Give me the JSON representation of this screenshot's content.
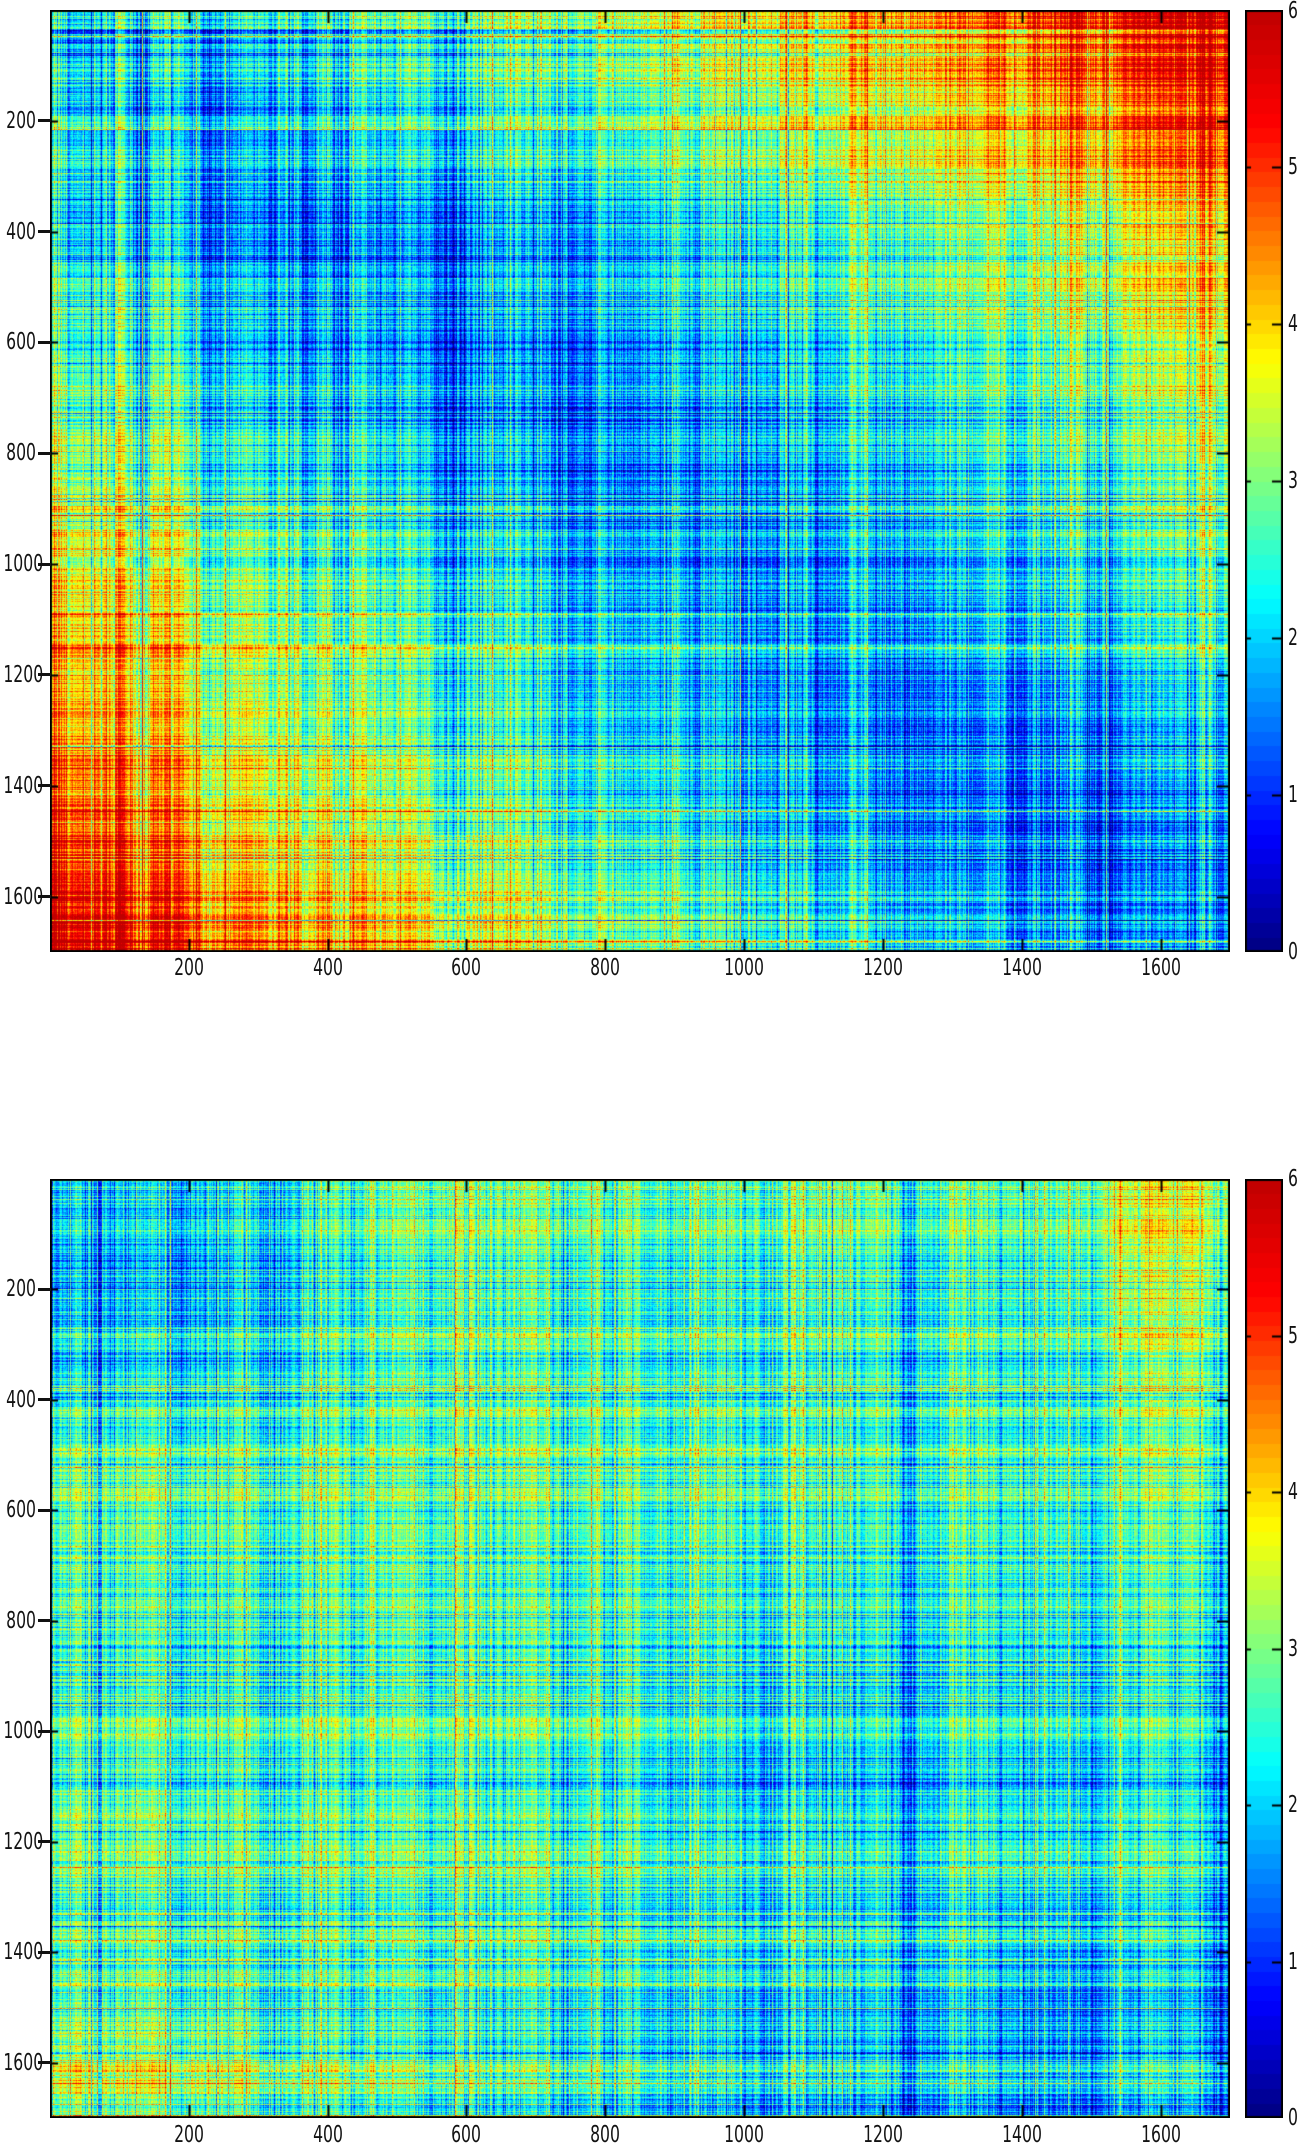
{
  "page": {
    "background": "#ffffff"
  },
  "chart_data": [
    {
      "type": "heatmap",
      "title": "",
      "xlabel": "",
      "ylabel": "",
      "x_range": [
        0,
        1700
      ],
      "y_range": [
        0,
        1700
      ],
      "y_axis_inverted": true,
      "x_ticks": [
        200,
        400,
        600,
        800,
        1000,
        1200,
        1400,
        1600
      ],
      "y_ticks": [
        200,
        400,
        600,
        800,
        1000,
        1200,
        1400,
        1600
      ],
      "colormap": "jet",
      "value_range": [
        0,
        6
      ],
      "colorbar_ticks": [
        6,
        5,
        4,
        3,
        2,
        1,
        0
      ],
      "cell_size_units": 100,
      "values": [
        [
          1.85,
          2.05,
          2.15,
          2.27,
          2.42,
          2.58,
          2.76,
          2.95,
          3.16,
          3.38,
          3.61,
          3.85,
          4.11,
          4.37,
          4.8,
          5.1,
          5.35
        ],
        [
          2.05,
          1.75,
          1.8,
          2.1,
          2.23,
          2.37,
          2.54,
          2.71,
          2.91,
          3.11,
          3.34,
          3.56,
          3.81,
          4.06,
          4.32,
          4.59,
          4.87
        ],
        [
          2.15,
          1.8,
          1.8,
          1.95,
          2.05,
          2.18,
          2.32,
          2.49,
          2.66,
          2.86,
          3.06,
          3.29,
          3.51,
          3.76,
          4.01,
          4.27,
          4.54
        ],
        [
          2.27,
          2.1,
          1.95,
          1.85,
          1.9,
          2.0,
          2.13,
          2.27,
          2.44,
          2.61,
          2.81,
          3.01,
          3.24,
          3.46,
          3.71,
          3.96,
          4.22
        ],
        [
          2.42,
          2.23,
          2.05,
          1.9,
          1.8,
          1.85,
          1.95,
          2.08,
          2.22,
          2.39,
          2.56,
          2.76,
          2.96,
          3.19,
          3.41,
          3.66,
          3.91
        ],
        [
          2.58,
          2.37,
          2.18,
          2.0,
          1.85,
          1.75,
          1.8,
          1.9,
          2.03,
          2.17,
          2.34,
          2.51,
          2.71,
          2.91,
          3.14,
          3.36,
          3.61
        ],
        [
          2.76,
          2.54,
          2.32,
          2.13,
          1.95,
          1.8,
          1.7,
          1.75,
          1.85,
          1.98,
          2.12,
          2.29,
          2.46,
          2.66,
          2.86,
          3.09,
          3.31
        ],
        [
          2.95,
          2.71,
          2.49,
          2.27,
          2.08,
          1.9,
          1.75,
          1.65,
          1.7,
          1.8,
          1.93,
          2.07,
          2.24,
          2.41,
          2.61,
          2.81,
          3.04
        ],
        [
          3.16,
          2.91,
          2.66,
          2.44,
          2.22,
          2.03,
          1.85,
          1.7,
          1.6,
          1.65,
          1.75,
          1.88,
          2.02,
          2.19,
          2.36,
          2.56,
          2.76
        ],
        [
          3.38,
          3.11,
          2.86,
          2.61,
          2.39,
          2.17,
          1.98,
          1.8,
          1.65,
          1.55,
          1.6,
          1.7,
          1.83,
          1.97,
          2.14,
          2.31,
          2.51
        ],
        [
          3.61,
          3.34,
          3.06,
          2.81,
          2.56,
          2.34,
          2.12,
          1.93,
          1.75,
          1.6,
          1.5,
          1.55,
          1.65,
          1.78,
          1.92,
          2.09,
          2.26
        ],
        [
          3.85,
          3.56,
          3.29,
          3.01,
          2.76,
          2.51,
          2.29,
          2.07,
          1.88,
          1.7,
          1.55,
          1.45,
          1.5,
          1.6,
          1.73,
          1.87,
          2.04
        ],
        [
          4.11,
          3.81,
          3.51,
          3.24,
          2.96,
          2.71,
          2.46,
          2.24,
          2.02,
          1.83,
          1.65,
          1.5,
          1.4,
          1.45,
          1.55,
          1.68,
          1.82
        ],
        [
          4.37,
          4.06,
          3.76,
          3.46,
          3.19,
          2.91,
          2.66,
          2.41,
          2.19,
          1.97,
          1.78,
          1.6,
          1.45,
          1.35,
          1.4,
          1.5,
          1.63
        ],
        [
          4.8,
          4.32,
          4.01,
          3.71,
          3.41,
          3.14,
          2.86,
          2.61,
          2.36,
          2.14,
          1.92,
          1.73,
          1.55,
          1.4,
          1.3,
          1.35,
          1.45
        ],
        [
          5.1,
          4.59,
          4.27,
          3.96,
          3.66,
          3.36,
          3.09,
          2.81,
          2.56,
          2.31,
          2.09,
          1.87,
          1.68,
          1.5,
          1.35,
          1.25,
          1.3
        ],
        [
          5.35,
          4.87,
          4.54,
          4.22,
          3.91,
          3.61,
          3.31,
          3.04,
          2.76,
          2.51,
          2.26,
          2.04,
          1.82,
          1.63,
          1.45,
          1.3,
          1.2
        ]
      ],
      "highlights": [
        {
          "axis": "row",
          "pos": 900,
          "width": 9,
          "boost": 1.0
        },
        {
          "axis": "row",
          "pos": 1150,
          "width": 9,
          "boost": 0.8
        },
        {
          "axis": "row",
          "pos": 40,
          "width": 6,
          "boost": -1.2
        },
        {
          "axis": "col",
          "pos": 6,
          "width": 8,
          "boost": 0.55
        }
      ],
      "texture": {
        "seed": 7,
        "col_noise": 0.42,
        "row_noise": 0.38,
        "group_noise": 0.22,
        "pixel_noise": 0.3,
        "outlier_frac": 0.06,
        "outlier_amp": 1.0
      }
    },
    {
      "type": "heatmap",
      "title": "",
      "xlabel": "",
      "ylabel": "",
      "x_range": [
        0,
        1700
      ],
      "y_range": [
        0,
        1700
      ],
      "y_axis_inverted": true,
      "x_ticks": [
        200,
        400,
        600,
        800,
        1000,
        1200,
        1400,
        1600
      ],
      "y_ticks": [
        200,
        400,
        600,
        800,
        1000,
        1200,
        1400,
        1600
      ],
      "colormap": "jet",
      "value_range": [
        0,
        6
      ],
      "colorbar_ticks": [
        6,
        5,
        4,
        3,
        2,
        1,
        0
      ],
      "cell_size_units": 100,
      "values": [
        [
          2.05,
          2.0,
          2.1,
          2.2,
          2.6,
          2.9,
          2.9,
          2.8,
          2.7,
          2.75,
          2.85,
          2.95,
          2.7,
          2.7,
          2.95,
          3.25,
          3.4
        ],
        [
          2.0,
          1.9,
          2.05,
          2.2,
          2.5,
          2.8,
          2.85,
          2.65,
          2.65,
          2.7,
          2.85,
          2.85,
          2.55,
          2.6,
          2.9,
          3.2,
          3.3
        ],
        [
          2.1,
          2.05,
          2.05,
          2.25,
          2.5,
          2.7,
          2.8,
          2.6,
          2.55,
          2.6,
          2.75,
          2.7,
          2.5,
          2.55,
          2.8,
          3.0,
          3.1
        ],
        [
          2.2,
          2.2,
          2.25,
          2.3,
          2.5,
          2.7,
          2.7,
          2.6,
          2.55,
          2.6,
          2.7,
          2.6,
          2.5,
          2.5,
          2.7,
          2.7,
          2.85
        ],
        [
          2.6,
          2.5,
          2.5,
          2.5,
          2.55,
          2.7,
          2.8,
          2.7,
          2.6,
          2.7,
          2.7,
          2.6,
          2.5,
          2.5,
          2.7,
          2.6,
          2.75
        ],
        [
          2.9,
          2.8,
          2.7,
          2.7,
          2.7,
          2.6,
          2.8,
          2.7,
          2.6,
          2.7,
          2.7,
          2.6,
          2.5,
          2.5,
          2.7,
          2.5,
          2.6
        ],
        [
          2.9,
          2.85,
          2.8,
          2.7,
          2.8,
          2.8,
          2.7,
          2.7,
          2.7,
          2.8,
          2.7,
          2.6,
          2.6,
          2.6,
          2.8,
          2.5,
          2.55
        ],
        [
          2.8,
          2.65,
          2.6,
          2.6,
          2.7,
          2.7,
          2.7,
          2.6,
          2.6,
          2.7,
          2.6,
          2.5,
          2.5,
          2.5,
          2.7,
          2.4,
          2.45
        ],
        [
          2.7,
          2.65,
          2.55,
          2.55,
          2.6,
          2.6,
          2.7,
          2.6,
          2.6,
          2.6,
          2.6,
          2.5,
          2.4,
          2.4,
          2.6,
          2.3,
          2.35
        ],
        [
          2.75,
          2.7,
          2.6,
          2.6,
          2.7,
          2.7,
          2.8,
          2.7,
          2.6,
          2.5,
          2.4,
          2.3,
          2.3,
          2.4,
          2.6,
          2.3,
          2.25
        ],
        [
          2.85,
          2.85,
          2.75,
          2.7,
          2.7,
          2.7,
          2.7,
          2.6,
          2.6,
          2.4,
          2.3,
          2.3,
          2.3,
          2.4,
          2.5,
          2.2,
          2.2
        ],
        [
          2.95,
          2.85,
          2.7,
          2.6,
          2.6,
          2.6,
          2.6,
          2.5,
          2.5,
          2.3,
          2.3,
          2.2,
          2.2,
          2.3,
          2.5,
          2.2,
          2.1
        ],
        [
          2.7,
          2.55,
          2.5,
          2.5,
          2.5,
          2.5,
          2.6,
          2.5,
          2.4,
          2.3,
          2.3,
          2.2,
          2.1,
          2.3,
          2.4,
          2.1,
          2.0
        ],
        [
          2.7,
          2.6,
          2.55,
          2.5,
          2.5,
          2.5,
          2.6,
          2.5,
          2.4,
          2.4,
          2.4,
          2.3,
          2.3,
          2.1,
          2.3,
          2.0,
          1.95
        ],
        [
          2.95,
          2.9,
          2.8,
          2.7,
          2.7,
          2.7,
          2.8,
          2.7,
          2.6,
          2.6,
          2.5,
          2.5,
          2.4,
          2.3,
          2.2,
          2.0,
          1.95
        ],
        [
          3.25,
          3.2,
          3.0,
          2.7,
          2.6,
          2.5,
          2.5,
          2.4,
          2.3,
          2.3,
          2.2,
          2.2,
          2.1,
          2.0,
          2.0,
          1.9,
          1.85
        ],
        [
          3.4,
          3.3,
          3.1,
          2.85,
          2.75,
          2.6,
          2.55,
          2.45,
          2.35,
          2.25,
          2.2,
          2.1,
          2.0,
          1.95,
          1.95,
          1.85,
          1.9
        ]
      ],
      "highlights": [
        {
          "axis": "row",
          "pos": 1605,
          "width": 14,
          "boost": 0.7
        },
        {
          "axis": "row",
          "pos": 1400,
          "width": 18,
          "boost": -0.45
        },
        {
          "axis": "row",
          "pos": 495,
          "width": 9,
          "boost": 0.5
        },
        {
          "axis": "col",
          "pos": 1587,
          "width": 20,
          "boost": 0.5
        },
        {
          "axis": "col",
          "pos": 1660,
          "width": 25,
          "boost": 0.3
        },
        {
          "axis": "col",
          "pos": 80,
          "width": 45,
          "boost": 0.22
        }
      ],
      "texture": {
        "seed": 11,
        "col_noise": 0.46,
        "row_noise": 0.42,
        "group_noise": 0.2,
        "pixel_noise": 0.32,
        "outlier_frac": 0.05,
        "outlier_amp": 0.9
      }
    }
  ]
}
